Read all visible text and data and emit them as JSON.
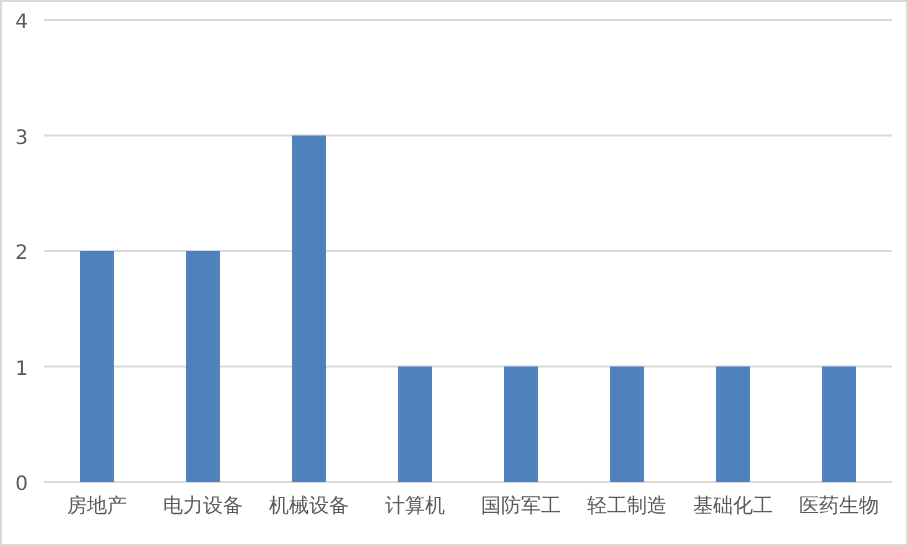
{
  "chart_data": {
    "type": "bar",
    "categories": [
      "房地产",
      "电力设备",
      "机械设备",
      "计算机",
      "国防军工",
      "轻工制造",
      "基础化工",
      "医药生物"
    ],
    "values": [
      2,
      2,
      3,
      1,
      1,
      1,
      1,
      1
    ],
    "color": "#4f81bd",
    "ylim": [
      0,
      4
    ],
    "yticks": [
      0,
      1,
      2,
      3,
      4
    ],
    "grid": "y"
  }
}
